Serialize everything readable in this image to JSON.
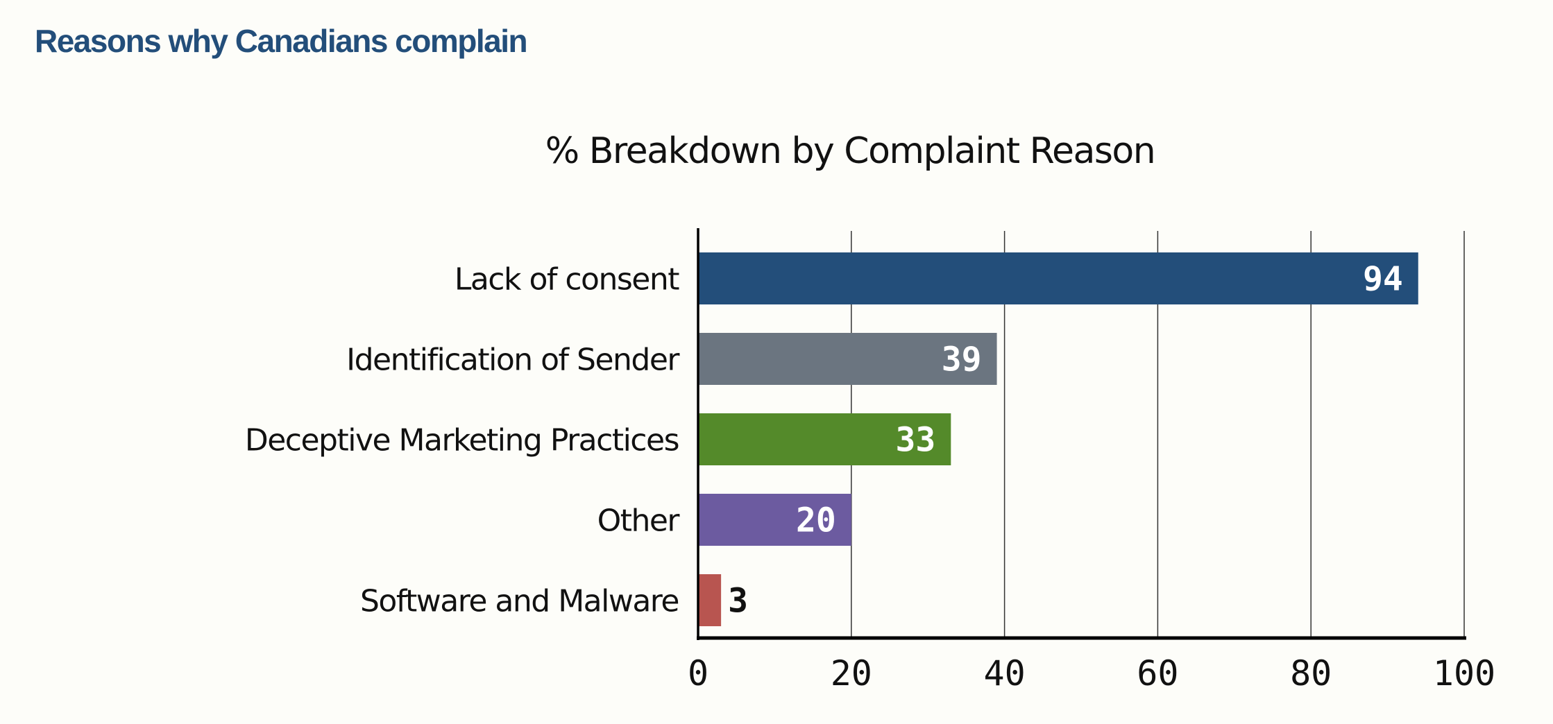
{
  "header": {
    "title": "Reasons why Canadians complain"
  },
  "chart_data": {
    "type": "bar",
    "orientation": "horizontal",
    "title": "% Breakdown by Complaint Reason",
    "xlabel": "",
    "ylabel": "",
    "categories": [
      "Lack of consent",
      "Identification of Sender",
      "Deceptive Marketing Practices",
      "Other",
      "Software and Malware"
    ],
    "values": [
      94,
      39,
      33,
      20,
      3
    ],
    "colors": [
      "#234e7a",
      "#6b7580",
      "#548a2a",
      "#6c5ba0",
      "#b85550"
    ],
    "data_label_colors": [
      "#ffffff",
      "#ffffff",
      "#ffffff",
      "#ffffff",
      "#111111"
    ],
    "xlim": [
      0,
      100
    ],
    "xticks": [
      0,
      20,
      40,
      60,
      80,
      100
    ],
    "grid": true,
    "legend": "none"
  }
}
